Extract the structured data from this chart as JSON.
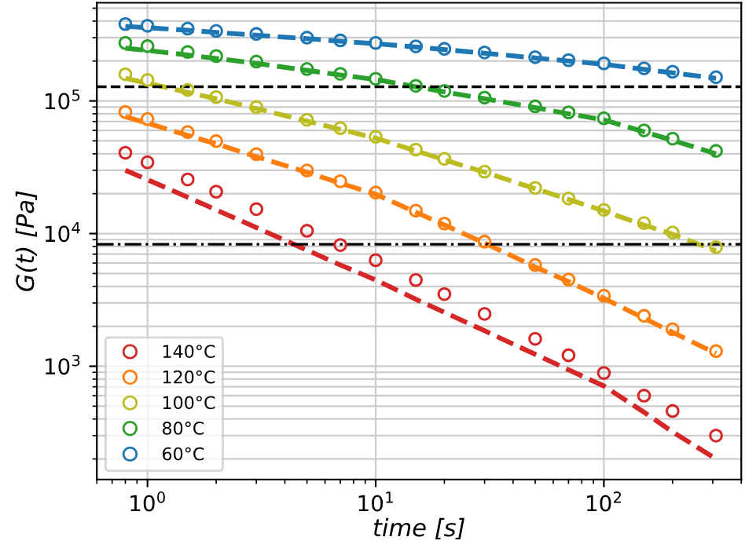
{
  "chart_data": {
    "type": "scatter",
    "xlabel": "time [s]",
    "ylabel": "G(t) [Pa]",
    "log": "xy",
    "grid": true,
    "legend": "bottom left",
    "marker": "circle",
    "x": [
      0.8,
      1,
      1.5,
      2,
      3,
      5,
      7,
      10,
      15,
      20,
      30,
      50,
      70,
      100,
      150,
      200,
      310
    ],
    "xlim": [
      0.6,
      400
    ],
    "ylim": [
      140,
      550000
    ],
    "xticks": [
      {
        "value": 1,
        "label": "10$^{0}$"
      },
      {
        "value": 10,
        "label": "10$^{1}$"
      },
      {
        "value": 100,
        "label": "10$^{2}$"
      }
    ],
    "yticks": [
      {
        "value": 1000,
        "label": "10$^{3}$"
      },
      {
        "value": 10000,
        "label": "10$^{4}$"
      },
      {
        "value": 100000,
        "label": "10$^{5}$"
      }
    ],
    "ref_lines": [
      {
        "axis": "y",
        "value": 128000,
        "color": "#000000",
        "line_style": "dashed"
      },
      {
        "axis": "y",
        "value": 8300,
        "color": "#000000",
        "line_style": "dashdot"
      }
    ],
    "series": [
      {
        "name": "140°C",
        "color": "#d62728",
        "values": [
          40700,
          34500,
          25600,
          20700,
          15300,
          10500,
          8200,
          6300,
          4470,
          3500,
          2480,
          1610,
          1210,
          890,
          600,
          460,
          300
        ]
      },
      {
        "name": "120°C",
        "color": "#ff7f0e",
        "values": [
          82600,
          73000,
          58300,
          49800,
          39700,
          29900,
          24800,
          20400,
          14900,
          11900,
          8700,
          5800,
          4500,
          3400,
          2400,
          1900,
          1300
        ]
      },
      {
        "name": "100°C",
        "color": "#bcbd22",
        "values": [
          159000,
          144000,
          121000,
          107000,
          89800,
          72100,
          62400,
          53700,
          43000,
          36600,
          29300,
          22100,
          18400,
          15100,
          12000,
          10200,
          7900
        ]
      },
      {
        "name": "80°C",
        "color": "#2ca02c",
        "values": [
          274000,
          259000,
          234000,
          218000,
          198000,
          174000,
          160000,
          147000,
          130000,
          119000,
          106000,
          91000,
          82000,
          74000,
          60000,
          52000,
          42000
        ]
      },
      {
        "name": "60°C",
        "color": "#1f77b4",
        "values": [
          380000,
          369000,
          351000,
          337000,
          320000,
          300000,
          286000,
          274000,
          258000,
          247000,
          232000,
          214000,
          203000,
          192000,
          176000,
          166000,
          151000
        ]
      },
      {
        "type": "line",
        "line_style": "dashed",
        "marker": "none",
        "color": "#d62728",
        "values": [
          30000,
          25500,
          18800,
          15100,
          11100,
          7500,
          5800,
          4470,
          3200,
          2550,
          1850,
          1230,
          940,
          710,
          450,
          320,
          200
        ]
      },
      {
        "type": "line",
        "line_style": "dashed",
        "marker": "none",
        "color": "#ff7f0e",
        "values": [
          76000,
          68000,
          55000,
          47500,
          38000,
          29000,
          24000,
          19800,
          14500,
          11600,
          8500,
          5600,
          4350,
          3250,
          2300,
          1800,
          1250
        ]
      },
      {
        "type": "line",
        "line_style": "dashed",
        "marker": "none",
        "color": "#bcbd22",
        "values": [
          148000,
          136000,
          116000,
          104000,
          87500,
          70500,
          61000,
          52500,
          42000,
          36000,
          29000,
          21800,
          18100,
          14800,
          11600,
          9900,
          7400
        ]
      },
      {
        "type": "line",
        "line_style": "dashed",
        "marker": "none",
        "color": "#2ca02c",
        "values": [
          250000,
          240000,
          222000,
          209000,
          192000,
          170000,
          157000,
          145000,
          128000,
          117000,
          104000,
          89000,
          80000,
          72000,
          58500,
          50500,
          40000
        ]
      },
      {
        "type": "line",
        "line_style": "dashed",
        "marker": "none",
        "color": "#1f77b4",
        "values": [
          365000,
          356000,
          341000,
          329000,
          313000,
          295000,
          282000,
          270000,
          255000,
          244000,
          229000,
          211000,
          200000,
          189000,
          173000,
          163000,
          148000
        ]
      }
    ]
  }
}
